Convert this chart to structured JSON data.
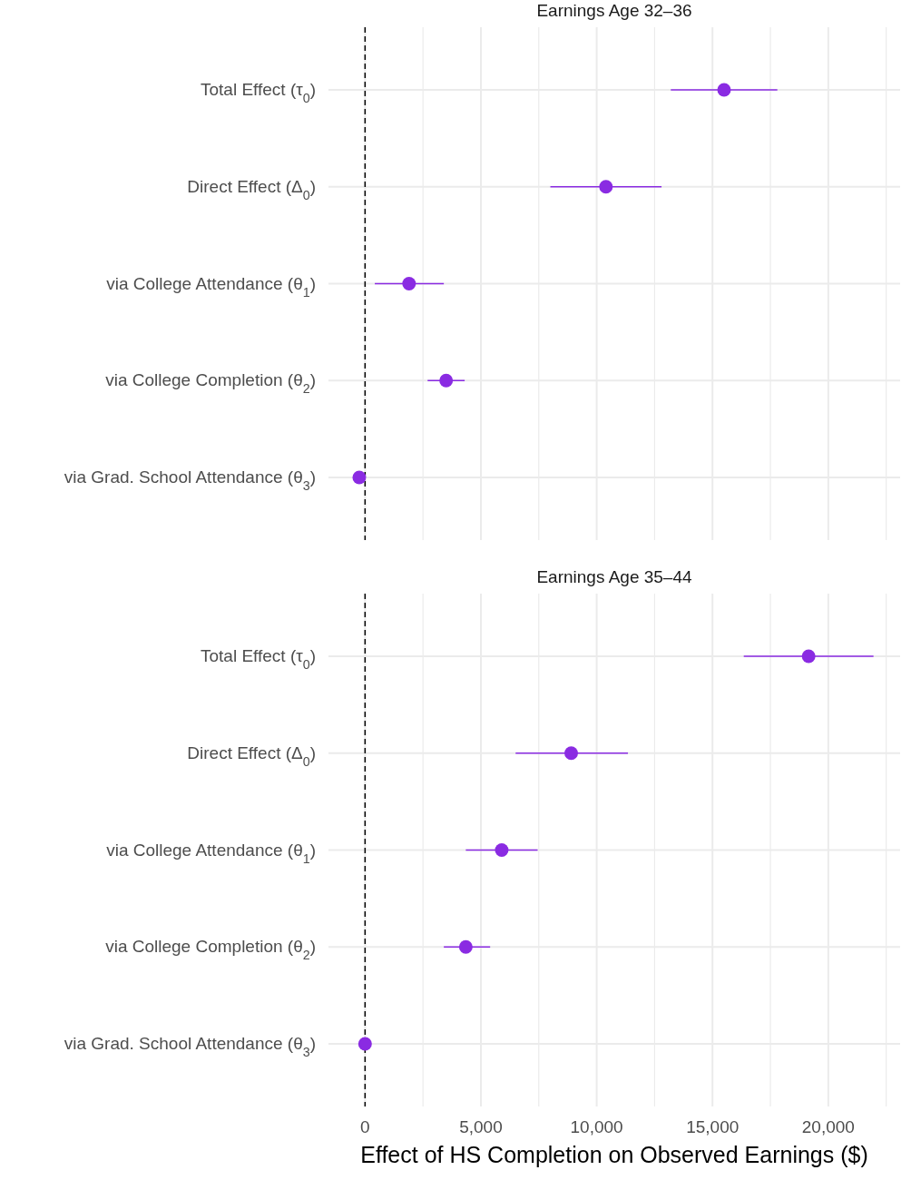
{
  "chart_data": [
    {
      "type": "scatter",
      "orientation": "horizontal",
      "title": "Earnings Age 32–36",
      "categories": [
        "Total Effect (τ$_{0}$)",
        "Direct Effect (Δ$_{0}$)",
        "via College Attendance (θ$_{1}$)",
        "via College Completion (θ$_{2}$)",
        "via Grad. School Attendance (θ$_{3}$)"
      ],
      "series": [
        {
          "color": "#8a2be2",
          "values": [
            15500,
            10400,
            1900,
            3500,
            -250
          ],
          "errors": [
            [
              13200,
              17800
            ],
            [
              8000,
              12800
            ],
            [
              420,
              3400
            ],
            [
              2700,
              4300
            ],
            null
          ]
        }
      ],
      "xlim": [
        -1580,
        23100
      ],
      "xticks": [
        {
          "value": 0,
          "label": null
        },
        {
          "value": 2500,
          "label": null
        },
        {
          "value": 5000,
          "label": null
        },
        {
          "value": 7500,
          "label": null
        },
        {
          "value": 10000,
          "label": null
        },
        {
          "value": 12500,
          "label": null
        },
        {
          "value": 15000,
          "label": null
        },
        {
          "value": 17500,
          "label": null
        },
        {
          "value": 20000,
          "label": null
        },
        {
          "value": 22500,
          "label": null
        }
      ],
      "tick_labels": "y",
      "grid": true,
      "marker": "circle",
      "ref_lines": [
        {
          "axis": "x",
          "value": 0,
          "color": "#000000",
          "line_style": "dashed"
        }
      ]
    },
    {
      "type": "scatter",
      "orientation": "horizontal",
      "title": "Earnings Age 35–44",
      "xlabel": "Effect of HS Completion on Observed Earnings ($)",
      "categories": [
        "Total Effect (τ$_{0}$)",
        "Direct Effect (Δ$_{0}$)",
        "via College Attendance (θ$_{1}$)",
        "via College Completion (θ$_{2}$)",
        "via Grad. School Attendance (θ$_{3}$)"
      ],
      "series": [
        {
          "color": "#8a2be2",
          "values": [
            19150,
            8900,
            5900,
            4350,
            0
          ],
          "errors": [
            [
              16350,
              21950
            ],
            [
              6500,
              11350
            ],
            [
              4350,
              7450
            ],
            [
              3400,
              5400
            ],
            null
          ]
        }
      ],
      "xlim": [
        -1580,
        23100
      ],
      "xticks": [
        {
          "value": 0,
          "label": "0"
        },
        {
          "value": 2500,
          "label": null
        },
        {
          "value": 5000,
          "label": "5,000"
        },
        {
          "value": 7500,
          "label": null
        },
        {
          "value": 10000,
          "label": "10,000"
        },
        {
          "value": 12500,
          "label": null
        },
        {
          "value": 15000,
          "label": "15,000"
        },
        {
          "value": 17500,
          "label": null
        },
        {
          "value": 20000,
          "label": "20,000"
        },
        {
          "value": 22500,
          "label": null
        }
      ],
      "grid": true,
      "marker": "circle",
      "ref_lines": [
        {
          "axis": "x",
          "value": 0,
          "color": "#000000",
          "line_style": "dashed"
        }
      ]
    }
  ]
}
